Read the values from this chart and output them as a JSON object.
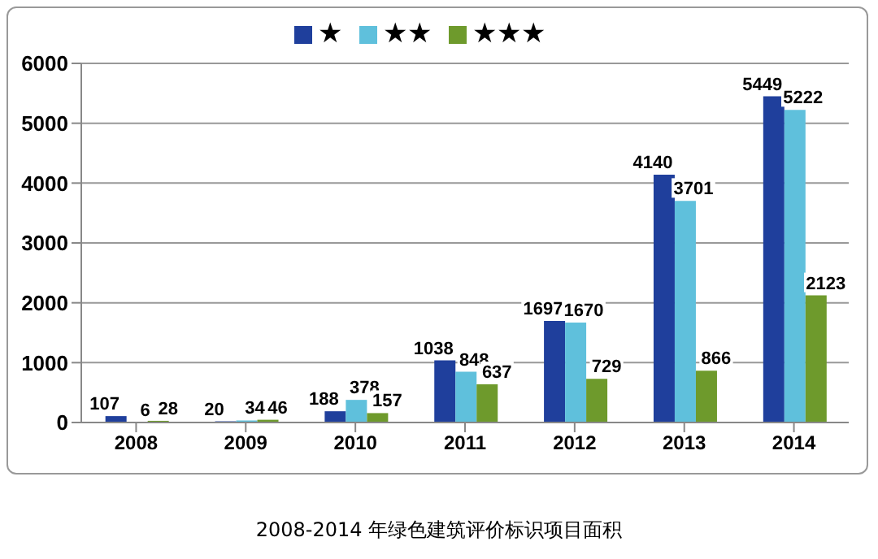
{
  "chart_data": {
    "type": "bar",
    "title": "2008-2014 年绿色建筑评价标识项目面积",
    "categories": [
      "2008",
      "2009",
      "2010",
      "2011",
      "2012",
      "2013",
      "2014"
    ],
    "series": [
      {
        "name": "★",
        "color": "#1f3f9c",
        "values": [
          107,
          20,
          188,
          1038,
          1697,
          4140,
          5449
        ]
      },
      {
        "name": "★★",
        "color": "#5fc0dc",
        "values": [
          6,
          34,
          378,
          848,
          1670,
          3701,
          5222
        ]
      },
      {
        "name": "★★★",
        "color": "#6e9a2c",
        "values": [
          28,
          46,
          157,
          637,
          729,
          866,
          2123
        ]
      }
    ],
    "ylim": [
      0,
      6000
    ],
    "yticks": [
      0,
      1000,
      2000,
      3000,
      4000,
      5000,
      6000
    ],
    "grid": "y",
    "legend": "top",
    "data_labels": true
  }
}
